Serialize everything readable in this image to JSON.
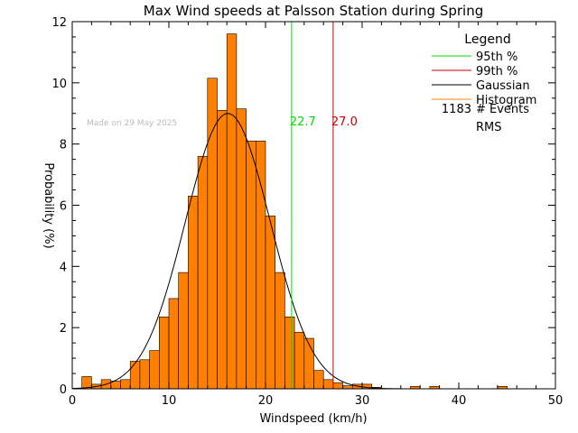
{
  "chart_data": {
    "type": "bar",
    "title": "Max Wind speeds at Palsson Station during Spring",
    "xlabel": "Windspeed (km/h)",
    "ylabel": "Probability (%)",
    "xlim": [
      0,
      50
    ],
    "ylim": [
      0,
      12
    ],
    "xticks": [
      "0",
      "10",
      "20",
      "30",
      "40",
      "50"
    ],
    "yticks": [
      "0",
      "2",
      "4",
      "6",
      "8",
      "10",
      "12"
    ],
    "bin_width": 1,
    "bins": [
      {
        "x": 1,
        "y": 0.4
      },
      {
        "x": 2,
        "y": 0.15
      },
      {
        "x": 3,
        "y": 0.3
      },
      {
        "x": 4,
        "y": 0.25
      },
      {
        "x": 5,
        "y": 0.3
      },
      {
        "x": 6,
        "y": 0.9
      },
      {
        "x": 7,
        "y": 0.95
      },
      {
        "x": 8,
        "y": 1.25
      },
      {
        "x": 9,
        "y": 2.35
      },
      {
        "x": 10,
        "y": 2.95
      },
      {
        "x": 11,
        "y": 3.8
      },
      {
        "x": 12,
        "y": 6.3
      },
      {
        "x": 13,
        "y": 7.6
      },
      {
        "x": 14,
        "y": 10.15
      },
      {
        "x": 15,
        "y": 9.1
      },
      {
        "x": 16,
        "y": 11.6
      },
      {
        "x": 17,
        "y": 9.15
      },
      {
        "x": 18,
        "y": 8.1
      },
      {
        "x": 19,
        "y": 8.1
      },
      {
        "x": 20,
        "y": 5.65
      },
      {
        "x": 21,
        "y": 3.8
      },
      {
        "x": 22,
        "y": 2.35
      },
      {
        "x": 23,
        "y": 1.85
      },
      {
        "x": 24,
        "y": 1.65
      },
      {
        "x": 25,
        "y": 0.6
      },
      {
        "x": 26,
        "y": 0.3
      },
      {
        "x": 27,
        "y": 0.2
      },
      {
        "x": 28,
        "y": 0.1
      },
      {
        "x": 29,
        "y": 0.15
      },
      {
        "x": 30,
        "y": 0.15
      },
      {
        "x": 31,
        "y": 0.05
      },
      {
        "x": 35,
        "y": 0.08
      },
      {
        "x": 37,
        "y": 0.08
      },
      {
        "x": 44,
        "y": 0.08
      }
    ],
    "gaussian": {
      "mean": 16.1,
      "sigma": 4.4,
      "peak": 9.0
    },
    "reference_lines": [
      {
        "x": 22.7,
        "label": "22.7",
        "color": "#00dd00"
      },
      {
        "x": 27.0,
        "label": "27.0",
        "color": "#cc0000"
      }
    ],
    "legend": {
      "title": "Legend",
      "placement": "top-right",
      "entries": [
        {
          "label": "95th %",
          "color": "#00dd00"
        },
        {
          "label": "99th %",
          "color": "#cc0000"
        },
        {
          "label": "Gaussian",
          "color": "#000000"
        },
        {
          "label": "Histogram",
          "color": "#ff8800"
        }
      ],
      "events_count": "1183",
      "events_label": "# Events",
      "rms_label": "RMS"
    },
    "annotation": "Made on 29 May 2025",
    "bar_color": "#ff8000",
    "grid": false
  }
}
